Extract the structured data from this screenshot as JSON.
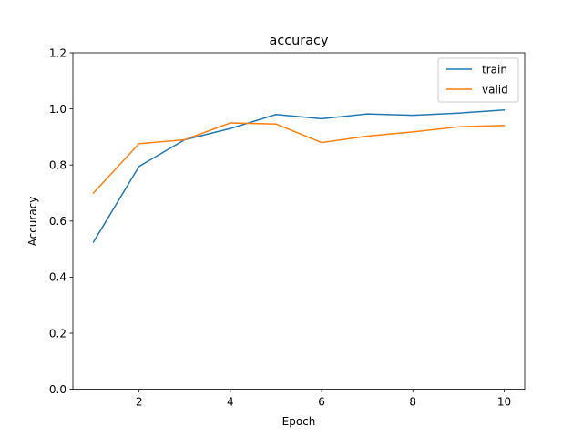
{
  "chart_data": {
    "type": "line",
    "title": "accuracy",
    "xlabel": "Epoch",
    "ylabel": "Accuracy",
    "xlim": [
      0.55,
      10.45
    ],
    "ylim": [
      0,
      1.2
    ],
    "xticks": [
      2,
      4,
      6,
      8,
      10
    ],
    "yticks": [
      0.0,
      0.2,
      0.4,
      0.6,
      0.8,
      1.0,
      1.2
    ],
    "ytick_labels": [
      "0.0",
      "0.2",
      "0.4",
      "0.6",
      "0.8",
      "1.0",
      "1.2"
    ],
    "grid": false,
    "legend_position": "top-right",
    "x": [
      1,
      2,
      3,
      4,
      5,
      6,
      7,
      8,
      9,
      10
    ],
    "series": [
      {
        "name": "train",
        "color": "#1f77b4",
        "values": [
          0.525,
          0.795,
          0.89,
          0.93,
          0.98,
          0.965,
          0.982,
          0.977,
          0.985,
          0.996
        ]
      },
      {
        "name": "valid",
        "color": "#ff7f0e",
        "values": [
          0.7,
          0.876,
          0.89,
          0.95,
          0.946,
          0.88,
          0.903,
          0.918,
          0.936,
          0.941
        ]
      }
    ]
  }
}
